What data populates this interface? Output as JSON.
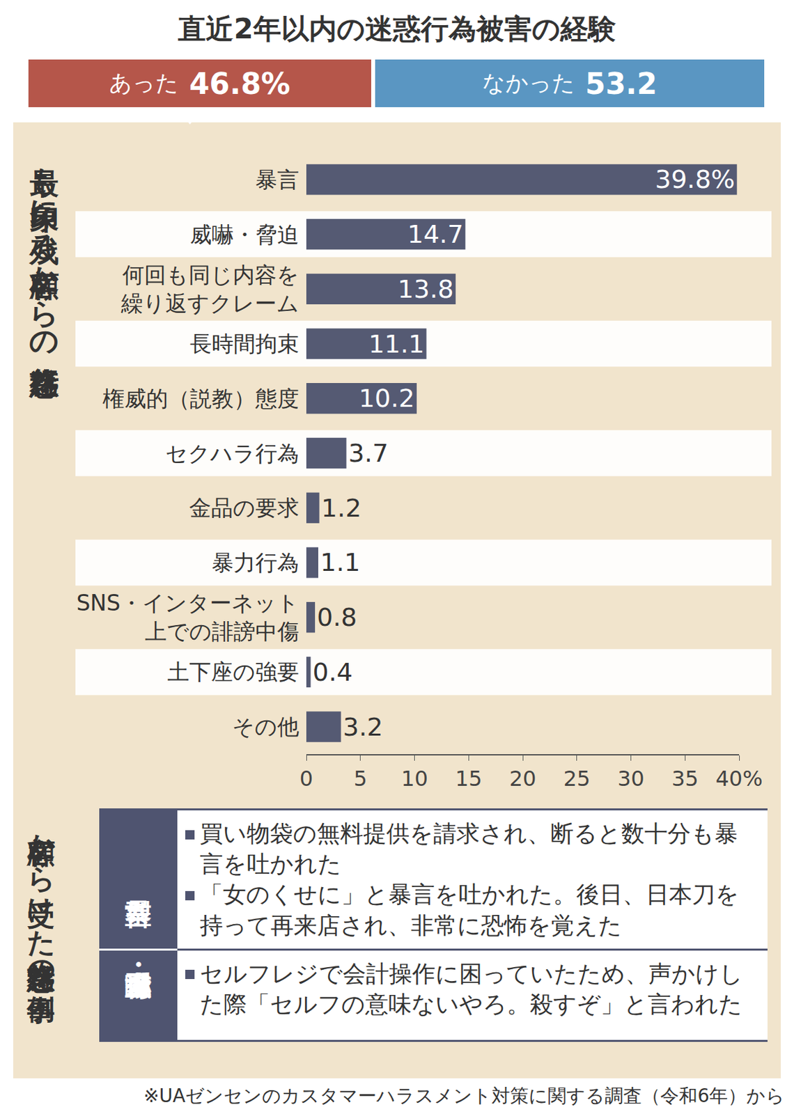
{
  "chart_data": [
    {
      "type": "bar",
      "orientation": "horizontal",
      "stacked": true,
      "title": "直近2年以内の迷惑行為被害の経験",
      "categories": [
        "あった",
        "なかった"
      ],
      "values": [
        46.8,
        53.2
      ],
      "value_labels": [
        "46.8%",
        "53.2"
      ],
      "colors": [
        "#b5564a",
        "#5a96c2"
      ],
      "data_labels": true,
      "tick_labels": false
    },
    {
      "type": "bar",
      "orientation": "horizontal",
      "title": "最も印象に残る顧客からの迷惑行為",
      "categories": [
        "暴言",
        "威嚇・脅迫",
        "何回も同じ内容を繰り返すクレーム",
        "長時間拘束",
        "権威的（説教）態度",
        "セクハラ行為",
        "金品の要求",
        "暴力行為",
        "SNS・インターネット上での誹謗中傷",
        "土下座の強要",
        "その他"
      ],
      "values": [
        39.8,
        14.7,
        13.8,
        11.1,
        10.2,
        3.7,
        1.2,
        1.1,
        0.8,
        0.4,
        3.2
      ],
      "value_labels": [
        "39.8%",
        "14.7",
        "13.8",
        "11.1",
        "10.2",
        "3.7",
        "1.2",
        "1.1",
        "0.8",
        "0.4",
        "3.2"
      ],
      "color": "#555a73",
      "xlim": [
        0,
        40
      ],
      "xticks": [
        0,
        5,
        10,
        15,
        20,
        25,
        30,
        35,
        {
          "value": 40,
          "label": "40%"
        }
      ],
      "grid": false,
      "data_labels": true
    }
  ],
  "examples": {
    "title": "顧客から受けた迷惑行為の事例",
    "groups": [
      {
        "name": "暴言型",
        "items": [
          "買い物袋の無料提供を請求され、断ると数十分も暴言を吐かれた",
          "「女のくせに」と暴言を吐かれた。後日、日本刀を持って再来店され、非常に恐怖を覚えた"
        ]
      },
      {
        "name": "威嚇・脅迫型",
        "items": [
          "セルフレジで会計操作に困っていたため、声かけした際「セルフの意味ないやろ。殺すぞ」と言われた"
        ]
      }
    ]
  },
  "source": "※UAゼンセンのカスタマーハラスメント対策に関する調査（令和6年）から"
}
